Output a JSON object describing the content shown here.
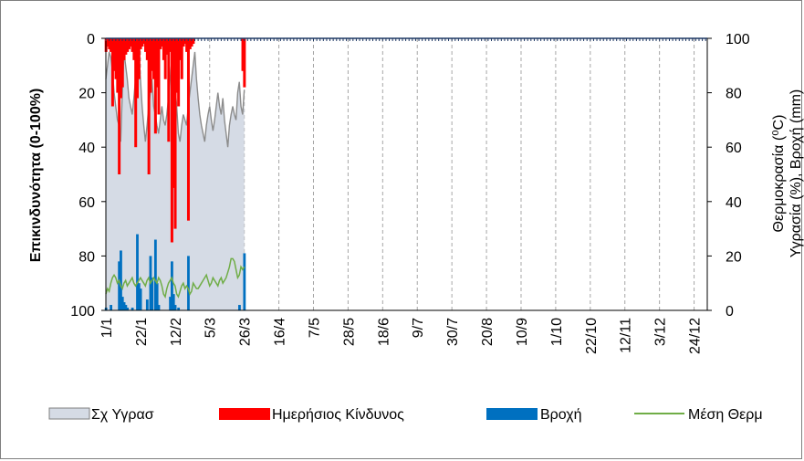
{
  "chart_data": {
    "type": "bar",
    "title": "",
    "ylabel_left": "Επικινδυνότητα (0-100%)",
    "ylabel_right_line1": "Θερμοκρασία (⁰C)",
    "ylabel_right_line2": "Υγρασία (%), Βροχή (mm)",
    "left_axis": {
      "min": 0,
      "max": 100,
      "inverted": true,
      "ticks": [
        0,
        20,
        40,
        60,
        80,
        100
      ]
    },
    "right_axis": {
      "min": 0,
      "max": 100,
      "ticks": [
        0,
        20,
        40,
        60,
        80,
        100
      ]
    },
    "x_ticks": [
      {
        "day": 0,
        "label": "1/1"
      },
      {
        "day": 21,
        "label": "22/1"
      },
      {
        "day": 42,
        "label": "12/2"
      },
      {
        "day": 63,
        "label": "5/3"
      },
      {
        "day": 84,
        "label": "26/3"
      },
      {
        "day": 105,
        "label": "16/4"
      },
      {
        "day": 126,
        "label": "7/5"
      },
      {
        "day": 147,
        "label": "28/5"
      },
      {
        "day": 168,
        "label": "18/6"
      },
      {
        "day": 189,
        "label": "9/7"
      },
      {
        "day": 210,
        "label": "30/7"
      },
      {
        "day": 231,
        "label": "20/8"
      },
      {
        "day": 252,
        "label": "10/9"
      },
      {
        "day": 273,
        "label": "1/10"
      },
      {
        "day": 294,
        "label": "22/10"
      },
      {
        "day": 315,
        "label": "12/11"
      },
      {
        "day": 336,
        "label": "3/12"
      },
      {
        "day": 357,
        "label": "24/12"
      }
    ],
    "x_range": [
      0,
      365
    ],
    "grid": "vertical dashed",
    "legend_position": "bottom",
    "series": [
      {
        "name": "Σχ Υγρασ",
        "kind": "area",
        "axis": "right",
        "color": "#d5dbe5",
        "edge_color": "#8c8c8c",
        "x": [
          0,
          1,
          2,
          3,
          4,
          5,
          6,
          7,
          8,
          9,
          10,
          11,
          12,
          13,
          14,
          15,
          16,
          17,
          18,
          19,
          20,
          21,
          22,
          23,
          24,
          25,
          26,
          27,
          28,
          29,
          30,
          31,
          32,
          33,
          34,
          35,
          36,
          37,
          38,
          39,
          40,
          41,
          42,
          43,
          44,
          45,
          46,
          47,
          48,
          49,
          50,
          51,
          52,
          53,
          54,
          55,
          56,
          57,
          58,
          59,
          60,
          61,
          62,
          63,
          64,
          65,
          66,
          67,
          68,
          69,
          70,
          71,
          72,
          73,
          74,
          75,
          76,
          77,
          78,
          79,
          80,
          81,
          82,
          83,
          84
        ],
        "values": [
          85,
          90,
          95,
          93,
          88,
          80,
          75,
          70,
          68,
          62,
          80,
          95,
          90,
          85,
          78,
          75,
          72,
          78,
          85,
          90,
          95,
          85,
          75,
          68,
          62,
          68,
          75,
          80,
          85,
          75,
          72,
          68,
          65,
          70,
          75,
          70,
          68,
          72,
          78,
          85,
          92,
          90,
          82,
          75,
          65,
          62,
          68,
          72,
          70,
          68,
          75,
          80,
          85,
          90,
          95,
          85,
          78,
          72,
          68,
          65,
          62,
          68,
          72,
          75,
          70,
          66,
          70,
          75,
          80,
          75,
          72,
          78,
          70,
          65,
          60,
          68,
          72,
          75,
          72,
          70,
          80,
          84,
          75,
          72,
          81
        ]
      },
      {
        "name": "Ημερήσιος Κίνδυνος",
        "kind": "bar",
        "axis": "left",
        "color": "#ff0000",
        "x": [
          0,
          1,
          2,
          3,
          4,
          5,
          6,
          7,
          8,
          9,
          10,
          11,
          12,
          13,
          14,
          15,
          16,
          17,
          18,
          19,
          20,
          21,
          22,
          23,
          24,
          25,
          26,
          27,
          28,
          29,
          30,
          31,
          32,
          33,
          34,
          35,
          36,
          37,
          38,
          39,
          40,
          41,
          42,
          43,
          44,
          45,
          46,
          47,
          48,
          49,
          50,
          51,
          52,
          53,
          54,
          55,
          56,
          57,
          58,
          59,
          60,
          61,
          62,
          63,
          64,
          65,
          66,
          67,
          68,
          69,
          70,
          71,
          72,
          73,
          74,
          75,
          76,
          77,
          78,
          79,
          80,
          81,
          82,
          83,
          84
        ],
        "values": [
          5,
          3,
          4,
          5,
          25,
          12,
          15,
          20,
          50,
          22,
          18,
          8,
          6,
          5,
          4,
          3,
          5,
          8,
          40,
          22,
          15,
          4,
          3,
          2,
          5,
          8,
          50,
          20,
          12,
          15,
          35,
          18,
          28,
          4,
          3,
          8,
          15,
          6,
          38,
          5,
          75,
          55,
          70,
          20,
          25,
          8,
          15,
          3,
          2,
          5,
          67,
          4,
          3,
          2,
          0,
          0,
          0,
          0,
          0,
          0,
          0,
          0,
          0,
          0,
          0,
          0,
          0,
          0,
          0,
          0,
          0,
          0,
          0,
          0,
          0,
          0,
          0,
          0,
          0,
          0,
          0,
          0,
          0,
          12,
          18
        ]
      },
      {
        "name": "Βροχή",
        "kind": "bar",
        "axis": "right",
        "color": "#0070c0",
        "x": [
          0,
          1,
          2,
          3,
          4,
          5,
          6,
          7,
          8,
          9,
          10,
          11,
          12,
          13,
          14,
          15,
          16,
          17,
          18,
          19,
          20,
          21,
          22,
          23,
          24,
          25,
          26,
          27,
          28,
          29,
          30,
          31,
          32,
          33,
          34,
          35,
          36,
          37,
          38,
          39,
          40,
          41,
          42,
          43,
          44,
          45,
          46,
          47,
          48,
          49,
          50,
          51,
          52,
          53,
          54,
          55,
          56,
          57,
          58,
          59,
          60,
          61,
          62,
          63,
          64,
          65,
          66,
          67,
          68,
          69,
          70,
          71,
          72,
          73,
          74,
          75,
          76,
          77,
          78,
          79,
          80,
          81,
          82,
          83,
          84
        ],
        "values": [
          1,
          0,
          0,
          2,
          0,
          0,
          0,
          0,
          18,
          22,
          5,
          3,
          2,
          1,
          0,
          0,
          1,
          0,
          0,
          28,
          10,
          8,
          0,
          0,
          0,
          4,
          0,
          20,
          12,
          0,
          26,
          10,
          2,
          0,
          0,
          0,
          0,
          0,
          0,
          5,
          18,
          6,
          2,
          0,
          1,
          0,
          0,
          0,
          0,
          0,
          20,
          0,
          0,
          0,
          0,
          0,
          0,
          0,
          0,
          0,
          0,
          0,
          0,
          0,
          0,
          0,
          0,
          0,
          0,
          0,
          0,
          0,
          0,
          0,
          0,
          0,
          0,
          0,
          0,
          0,
          0,
          2,
          0,
          0,
          21
        ]
      },
      {
        "name": "Μέση Θερμ",
        "kind": "line",
        "axis": "right",
        "color": "#70ad47",
        "x": [
          0,
          1,
          2,
          3,
          4,
          5,
          6,
          7,
          8,
          9,
          10,
          11,
          12,
          13,
          14,
          15,
          16,
          17,
          18,
          19,
          20,
          21,
          22,
          23,
          24,
          25,
          26,
          27,
          28,
          29,
          30,
          31,
          32,
          33,
          34,
          35,
          36,
          37,
          38,
          39,
          40,
          41,
          42,
          43,
          44,
          45,
          46,
          47,
          48,
          49,
          50,
          51,
          52,
          53,
          54,
          55,
          56,
          57,
          58,
          59,
          60,
          61,
          62,
          63,
          64,
          65,
          66,
          67,
          68,
          69,
          70,
          71,
          72,
          73,
          74,
          75,
          76,
          77,
          78,
          79,
          80,
          81,
          82,
          83,
          84
        ],
        "values": [
          6,
          8,
          7,
          10,
          12,
          13,
          12,
          10,
          11,
          9,
          8,
          10,
          11,
          9,
          10,
          11,
          12,
          10,
          9,
          10,
          11,
          12,
          11,
          10,
          9,
          11,
          12,
          10,
          11,
          12,
          11,
          10,
          12,
          11,
          9,
          6,
          5,
          8,
          10,
          11,
          12,
          10,
          9,
          6,
          5,
          7,
          9,
          10,
          8,
          9,
          8,
          6,
          7,
          10,
          9,
          8,
          8,
          9,
          10,
          11,
          12,
          13,
          11,
          9,
          10,
          12,
          11,
          10,
          9,
          11,
          12,
          10,
          11,
          12,
          14,
          16,
          19,
          19,
          18,
          15,
          12,
          13,
          16,
          15,
          16
        ]
      }
    ]
  }
}
